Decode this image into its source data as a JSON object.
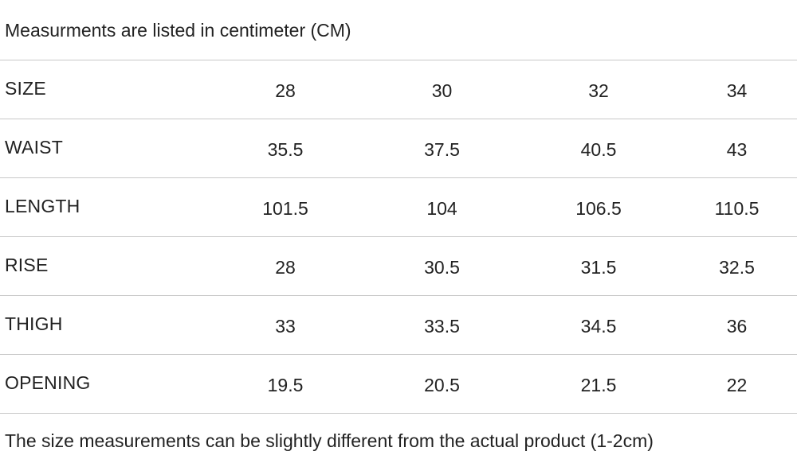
{
  "header_note": "Measurments are listed in centimeter (CM)",
  "table": {
    "rows": [
      {
        "label": "SIZE",
        "values": [
          "28",
          "30",
          "32",
          "34"
        ]
      },
      {
        "label": "WAIST",
        "values": [
          "35.5",
          "37.5",
          "40.5",
          "43"
        ]
      },
      {
        "label": "LENGTH",
        "values": [
          "101.5",
          "104",
          "106.5",
          "110.5"
        ]
      },
      {
        "label": "RISE",
        "values": [
          "28",
          "30.5",
          "31.5",
          "32.5"
        ]
      },
      {
        "label": "THIGH",
        "values": [
          "33",
          "33.5",
          "34.5",
          "36"
        ]
      },
      {
        "label": "OPENING",
        "values": [
          "19.5",
          "20.5",
          "21.5",
          "22"
        ]
      }
    ]
  },
  "footer_note": "The size measurements can be slightly different from the actual product (1-2cm)",
  "colors": {
    "text": "#222222",
    "rule": "#c8c8c8",
    "background": "#ffffff"
  }
}
